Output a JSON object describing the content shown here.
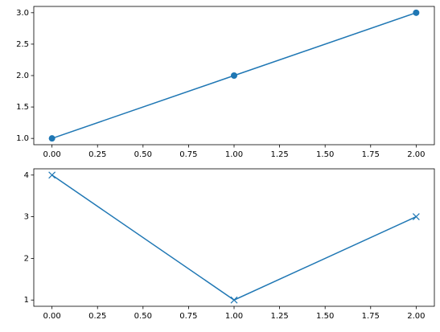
{
  "chart_data": [
    {
      "type": "line",
      "x": [
        0,
        1,
        2
      ],
      "series": [
        {
          "color": "#1f77b4",
          "marker": "circle",
          "values": [
            1,
            2,
            3
          ]
        }
      ],
      "xlim": [
        -0.1,
        2.1
      ],
      "xticks": [
        {
          "value": 0,
          "label": "0.00"
        },
        {
          "value": 0.25,
          "label": "0.25"
        },
        {
          "value": 0.5,
          "label": "0.50"
        },
        {
          "value": 0.75,
          "label": "0.75"
        },
        {
          "value": 1,
          "label": "1.00"
        },
        {
          "value": 1.25,
          "label": "1.25"
        },
        {
          "value": 1.5,
          "label": "1.50"
        },
        {
          "value": 1.75,
          "label": "1.75"
        },
        {
          "value": 2,
          "label": "2.00"
        }
      ],
      "ylim": [
        0.9,
        3.1
      ],
      "yticks": [
        {
          "value": 1,
          "label": "1.0"
        },
        1.5,
        {
          "value": 2,
          "label": "2.0"
        },
        2.5,
        {
          "value": 3,
          "label": "3.0"
        }
      ]
    },
    {
      "type": "line",
      "x": [
        0,
        1,
        2
      ],
      "series": [
        {
          "color": "#1f77b4",
          "marker": "x",
          "values": [
            4,
            1,
            3
          ]
        }
      ],
      "xlim": [
        -0.1,
        2.1
      ],
      "xticks": [
        {
          "value": 0,
          "label": "0.00"
        },
        {
          "value": 0.25,
          "label": "0.25"
        },
        {
          "value": 0.5,
          "label": "0.50"
        },
        {
          "value": 0.75,
          "label": "0.75"
        },
        {
          "value": 1,
          "label": "1.00"
        },
        {
          "value": 1.25,
          "label": "1.25"
        },
        {
          "value": 1.5,
          "label": "1.50"
        },
        {
          "value": 1.75,
          "label": "1.75"
        },
        {
          "value": 2,
          "label": "2.00"
        }
      ],
      "ylim": [
        0.85,
        4.15
      ],
      "yticks": [
        1,
        2,
        3,
        4
      ]
    }
  ]
}
